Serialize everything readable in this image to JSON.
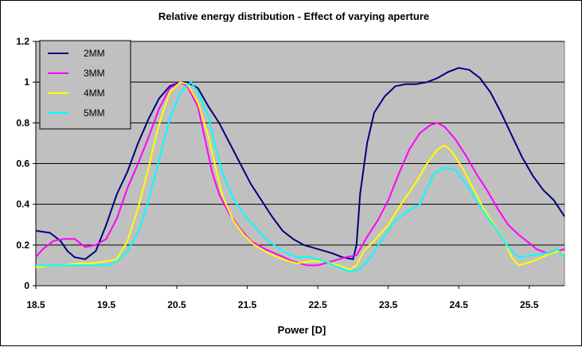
{
  "chart_data": {
    "type": "line",
    "title": "Relative energy distribution - Effect of varying aperture",
    "xlabel": "Power [D]",
    "ylabel": "",
    "xlim": [
      18.5,
      26
    ],
    "ylim": [
      0,
      1.2
    ],
    "x_ticks": [
      "18.5",
      "19.5",
      "20.5",
      "21.5",
      "22.5",
      "23.5",
      "24.5",
      "25.5"
    ],
    "y_ticks": [
      "0",
      "0.2",
      "0.4",
      "0.6",
      "0.8",
      "1",
      "1.2"
    ],
    "grid": "horizontal",
    "plot_background": "#c0c0c0",
    "legend_position": "top-left",
    "series": [
      {
        "name": "2MM",
        "color": "#000080",
        "points": [
          [
            18.5,
            0.27
          ],
          [
            18.7,
            0.26
          ],
          [
            18.85,
            0.22
          ],
          [
            18.95,
            0.17
          ],
          [
            19.05,
            0.14
          ],
          [
            19.2,
            0.13
          ],
          [
            19.35,
            0.17
          ],
          [
            19.5,
            0.3
          ],
          [
            19.65,
            0.45
          ],
          [
            19.8,
            0.56
          ],
          [
            19.95,
            0.7
          ],
          [
            20.1,
            0.82
          ],
          [
            20.25,
            0.92
          ],
          [
            20.4,
            0.98
          ],
          [
            20.55,
            1.0
          ],
          [
            20.65,
            1.0
          ],
          [
            20.8,
            0.97
          ],
          [
            20.95,
            0.88
          ],
          [
            21.1,
            0.8
          ],
          [
            21.25,
            0.7
          ],
          [
            21.4,
            0.6
          ],
          [
            21.55,
            0.5
          ],
          [
            21.7,
            0.42
          ],
          [
            21.85,
            0.34
          ],
          [
            22.0,
            0.27
          ],
          [
            22.15,
            0.23
          ],
          [
            22.3,
            0.2
          ],
          [
            22.5,
            0.18
          ],
          [
            22.7,
            0.16
          ],
          [
            22.85,
            0.14
          ],
          [
            23.0,
            0.13
          ],
          [
            23.05,
            0.2
          ],
          [
            23.1,
            0.45
          ],
          [
            23.2,
            0.7
          ],
          [
            23.3,
            0.85
          ],
          [
            23.45,
            0.93
          ],
          [
            23.6,
            0.98
          ],
          [
            23.75,
            0.99
          ],
          [
            23.9,
            0.99
          ],
          [
            24.05,
            1.0
          ],
          [
            24.2,
            1.02
          ],
          [
            24.35,
            1.05
          ],
          [
            24.5,
            1.07
          ],
          [
            24.65,
            1.06
          ],
          [
            24.8,
            1.02
          ],
          [
            24.95,
            0.95
          ],
          [
            25.1,
            0.85
          ],
          [
            25.25,
            0.74
          ],
          [
            25.4,
            0.63
          ],
          [
            25.55,
            0.54
          ],
          [
            25.7,
            0.47
          ],
          [
            25.85,
            0.42
          ],
          [
            26.0,
            0.34
          ]
        ]
      },
      {
        "name": "3MM",
        "color": "#ff00ff",
        "points": [
          [
            18.5,
            0.14
          ],
          [
            18.6,
            0.18
          ],
          [
            18.75,
            0.22
          ],
          [
            18.9,
            0.23
          ],
          [
            19.05,
            0.23
          ],
          [
            19.2,
            0.19
          ],
          [
            19.35,
            0.2
          ],
          [
            19.5,
            0.23
          ],
          [
            19.65,
            0.33
          ],
          [
            19.8,
            0.48
          ],
          [
            19.95,
            0.6
          ],
          [
            20.1,
            0.73
          ],
          [
            20.25,
            0.87
          ],
          [
            20.4,
            0.97
          ],
          [
            20.55,
            1.0
          ],
          [
            20.65,
            0.98
          ],
          [
            20.8,
            0.88
          ],
          [
            20.9,
            0.72
          ],
          [
            21.0,
            0.56
          ],
          [
            21.1,
            0.45
          ],
          [
            21.25,
            0.35
          ],
          [
            21.4,
            0.28
          ],
          [
            21.55,
            0.22
          ],
          [
            21.75,
            0.18
          ],
          [
            21.95,
            0.15
          ],
          [
            22.15,
            0.12
          ],
          [
            22.35,
            0.1
          ],
          [
            22.5,
            0.1
          ],
          [
            22.7,
            0.12
          ],
          [
            22.9,
            0.14
          ],
          [
            23.05,
            0.15
          ],
          [
            23.2,
            0.24
          ],
          [
            23.35,
            0.32
          ],
          [
            23.5,
            0.42
          ],
          [
            23.65,
            0.55
          ],
          [
            23.8,
            0.67
          ],
          [
            23.95,
            0.75
          ],
          [
            24.1,
            0.79
          ],
          [
            24.2,
            0.8
          ],
          [
            24.3,
            0.78
          ],
          [
            24.45,
            0.72
          ],
          [
            24.6,
            0.64
          ],
          [
            24.75,
            0.55
          ],
          [
            24.9,
            0.47
          ],
          [
            25.05,
            0.38
          ],
          [
            25.2,
            0.3
          ],
          [
            25.35,
            0.25
          ],
          [
            25.5,
            0.21
          ],
          [
            25.6,
            0.18
          ],
          [
            25.75,
            0.16
          ],
          [
            25.9,
            0.17
          ],
          [
            26.0,
            0.18
          ]
        ]
      },
      {
        "name": "4MM",
        "color": "#ffff00",
        "points": [
          [
            18.5,
            0.09
          ],
          [
            18.7,
            0.1
          ],
          [
            18.9,
            0.1
          ],
          [
            19.1,
            0.11
          ],
          [
            19.3,
            0.11
          ],
          [
            19.5,
            0.12
          ],
          [
            19.65,
            0.13
          ],
          [
            19.8,
            0.22
          ],
          [
            19.95,
            0.38
          ],
          [
            20.1,
            0.58
          ],
          [
            20.2,
            0.73
          ],
          [
            20.3,
            0.85
          ],
          [
            20.4,
            0.95
          ],
          [
            20.55,
            1.0
          ],
          [
            20.65,
            0.99
          ],
          [
            20.8,
            0.9
          ],
          [
            20.95,
            0.73
          ],
          [
            21.05,
            0.58
          ],
          [
            21.15,
            0.44
          ],
          [
            21.3,
            0.32
          ],
          [
            21.45,
            0.25
          ],
          [
            21.6,
            0.2
          ],
          [
            21.8,
            0.16
          ],
          [
            22.0,
            0.13
          ],
          [
            22.2,
            0.11
          ],
          [
            22.4,
            0.12
          ],
          [
            22.6,
            0.12
          ],
          [
            22.8,
            0.1
          ],
          [
            22.95,
            0.08
          ],
          [
            23.05,
            0.1
          ],
          [
            23.15,
            0.17
          ],
          [
            23.3,
            0.22
          ],
          [
            23.5,
            0.3
          ],
          [
            23.7,
            0.41
          ],
          [
            23.9,
            0.51
          ],
          [
            24.05,
            0.6
          ],
          [
            24.2,
            0.67
          ],
          [
            24.3,
            0.69
          ],
          [
            24.4,
            0.66
          ],
          [
            24.55,
            0.58
          ],
          [
            24.7,
            0.48
          ],
          [
            24.85,
            0.38
          ],
          [
            25.0,
            0.3
          ],
          [
            25.15,
            0.22
          ],
          [
            25.25,
            0.14
          ],
          [
            25.35,
            0.1
          ],
          [
            25.55,
            0.12
          ],
          [
            25.75,
            0.15
          ],
          [
            25.9,
            0.17
          ],
          [
            26.0,
            0.16
          ]
        ]
      },
      {
        "name": "5MM",
        "color": "#00ffff",
        "points": [
          [
            18.5,
            0.1
          ],
          [
            18.7,
            0.1
          ],
          [
            18.9,
            0.1
          ],
          [
            19.1,
            0.1
          ],
          [
            19.3,
            0.1
          ],
          [
            19.5,
            0.1
          ],
          [
            19.65,
            0.12
          ],
          [
            19.8,
            0.17
          ],
          [
            19.95,
            0.26
          ],
          [
            20.1,
            0.42
          ],
          [
            20.25,
            0.62
          ],
          [
            20.4,
            0.82
          ],
          [
            20.55,
            0.95
          ],
          [
            20.7,
            1.0
          ],
          [
            20.8,
            0.95
          ],
          [
            20.95,
            0.83
          ],
          [
            21.05,
            0.68
          ],
          [
            21.15,
            0.55
          ],
          [
            21.3,
            0.43
          ],
          [
            21.45,
            0.35
          ],
          [
            21.6,
            0.29
          ],
          [
            21.8,
            0.22
          ],
          [
            22.0,
            0.17
          ],
          [
            22.2,
            0.14
          ],
          [
            22.4,
            0.14
          ],
          [
            22.6,
            0.12
          ],
          [
            22.8,
            0.09
          ],
          [
            22.95,
            0.07
          ],
          [
            23.1,
            0.08
          ],
          [
            23.25,
            0.14
          ],
          [
            23.4,
            0.22
          ],
          [
            23.6,
            0.32
          ],
          [
            23.8,
            0.37
          ],
          [
            23.95,
            0.4
          ],
          [
            24.05,
            0.48
          ],
          [
            24.15,
            0.55
          ],
          [
            24.3,
            0.58
          ],
          [
            24.45,
            0.57
          ],
          [
            24.6,
            0.5
          ],
          [
            24.75,
            0.42
          ],
          [
            24.9,
            0.34
          ],
          [
            25.05,
            0.27
          ],
          [
            25.2,
            0.19
          ],
          [
            25.35,
            0.14
          ],
          [
            25.55,
            0.15
          ],
          [
            25.75,
            0.16
          ],
          [
            25.9,
            0.18
          ],
          [
            26.0,
            0.14
          ]
        ]
      }
    ]
  }
}
